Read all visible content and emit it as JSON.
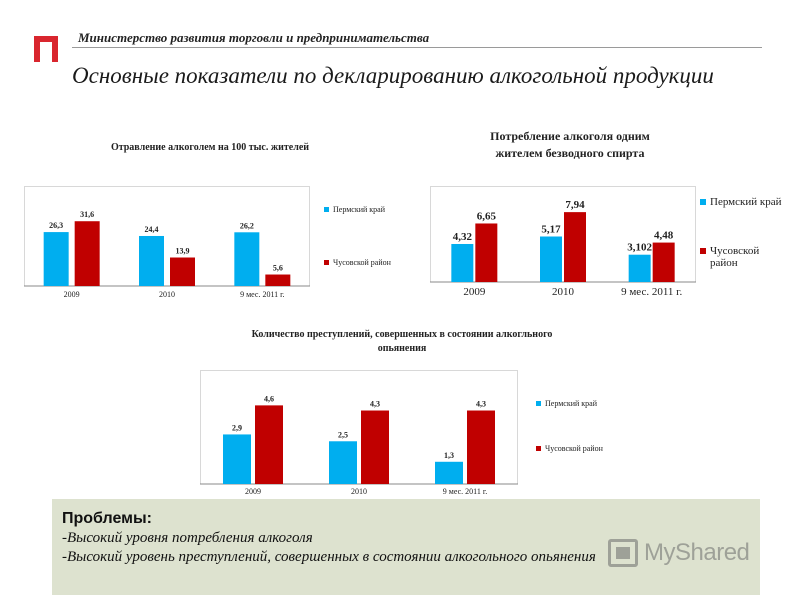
{
  "header": {
    "ministry": "Министерство развития торговли и предпринимательства",
    "title": "Основные показатели по декларированию алкогольной продукции"
  },
  "colors": {
    "perm": "#00aeef",
    "chus": "#c00000",
    "logo": "#d9262e",
    "panel": "#dde2cf"
  },
  "chart_data": [
    {
      "type": "bar",
      "title": "Отравление алкоголем на 100 тыс. жителей",
      "categories": [
        "2009",
        "2010",
        "9 мес. 2011 г."
      ],
      "series": [
        {
          "name": "Пермский край",
          "values": [
            26.3,
            24.4,
            26.2
          ],
          "labels": [
            "26,3",
            "24,4",
            "26,2"
          ]
        },
        {
          "name": "Чусовской район",
          "values": [
            31.6,
            13.9,
            5.6
          ],
          "labels": [
            "31,6",
            "13,9",
            "5,6"
          ]
        }
      ],
      "ylim": [
        0,
        40
      ],
      "legend": "right",
      "grid": false
    },
    {
      "type": "bar",
      "title": "Потребление алкоголя одним жителем безводного спирта",
      "categories": [
        "2009",
        "2010",
        "9 мес. 2011 г."
      ],
      "series": [
        {
          "name": "Пермский край",
          "values": [
            4.32,
            5.17,
            3.102
          ],
          "labels": [
            "4,32",
            "5,17",
            "3,102"
          ]
        },
        {
          "name": "Чусовской район",
          "values": [
            6.65,
            7.94,
            4.48
          ],
          "labels": [
            "6,65",
            "7,94",
            "4,48"
          ]
        }
      ],
      "ylim": [
        0,
        10
      ],
      "legend": "right",
      "grid": false
    },
    {
      "type": "bar",
      "title": "Количество преступлений, совершенных в состоянии алкогльного опьянения",
      "categories": [
        "2009",
        "2010",
        "9 мес. 2011 г."
      ],
      "series": [
        {
          "name": "Пермский край",
          "values": [
            2.9,
            2.5,
            1.3
          ],
          "labels": [
            "2,9",
            "2,5",
            "1,3"
          ]
        },
        {
          "name": "Чусовской район",
          "values": [
            4.6,
            4.3,
            4.3
          ],
          "labels": [
            "4,6",
            "4,3",
            "4,3"
          ]
        }
      ],
      "ylim": [
        0,
        5.5
      ],
      "legend": "right",
      "grid": false
    }
  ],
  "problems": {
    "title": "Проблемы:",
    "lines": [
      "-Высокий уровня потребления алкоголя",
      "-Высокий уровень преступлений, совершенных в состоянии алкогольного опьянения"
    ]
  },
  "watermark": {
    "text": "MyShared"
  }
}
